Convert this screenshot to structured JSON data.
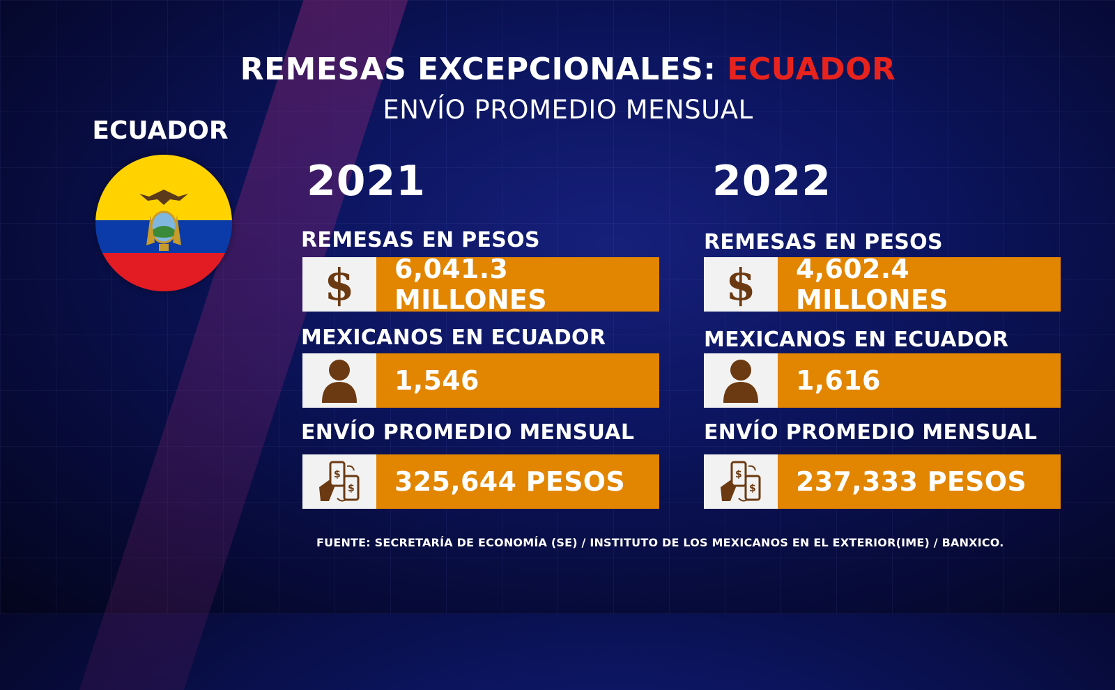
{
  "title": {
    "main": "REMESAS EXCEPCIONALES: ",
    "accent": "ECUADOR",
    "accent_color": "#e8231e"
  },
  "subtitle": "ENVÍO PROMEDIO MENSUAL",
  "country": {
    "label": "ECUADOR",
    "flag_colors": [
      "#ffd200",
      "#0a3ba8",
      "#e31b23"
    ]
  },
  "colors": {
    "value_box": "#e28500",
    "icon_box": "#f2f2f2",
    "icon": "#6b3a12"
  },
  "columns": [
    {
      "year": "2021",
      "rows": [
        {
          "label": "REMESAS EN PESOS",
          "icon": "dollar-icon",
          "icon_text": "$",
          "value": "6,041.3 MILLONES"
        },
        {
          "label": "MEXICANOS EN ECUADOR",
          "icon": "person-icon",
          "value": "1,546"
        },
        {
          "label": "ENVÍO PROMEDIO MENSUAL",
          "icon": "money-transfer-icon",
          "value": "325,644 PESOS"
        }
      ]
    },
    {
      "year": "2022",
      "rows": [
        {
          "label": "REMESAS EN PESOS",
          "icon": "dollar-icon",
          "icon_text": "$",
          "value": "4,602.4 MILLONES"
        },
        {
          "label": "MEXICANOS EN ECUADOR",
          "icon": "person-icon",
          "value": "1,616"
        },
        {
          "label": "ENVÍO PROMEDIO MENSUAL",
          "icon": "money-transfer-icon",
          "value": "237,333 PESOS"
        }
      ]
    }
  ],
  "source": "FUENTE: SECRETARÍA DE ECONOMÍA (SE) / INSTITUTO DE LOS MEXICANOS EN EL EXTERIOR(IME) / BANXICO."
}
